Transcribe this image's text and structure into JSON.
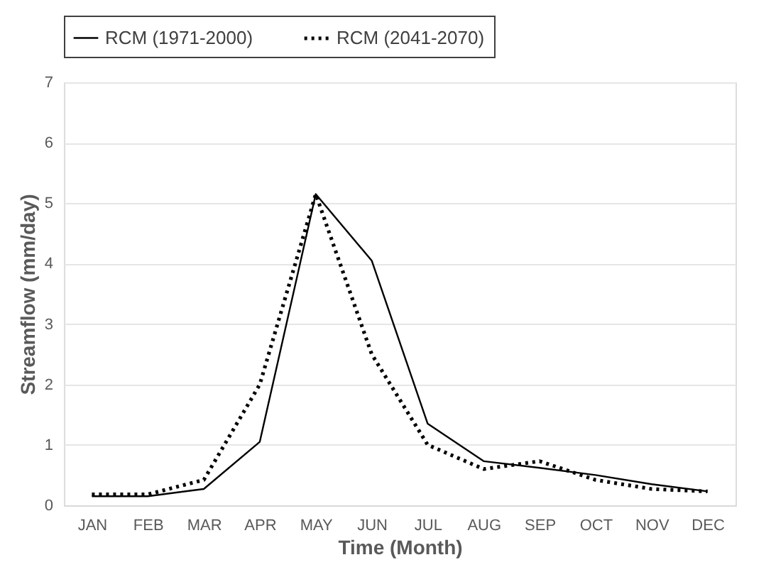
{
  "chart_data": {
    "type": "line",
    "xlabel": "Time (Month)",
    "ylabel": "Streamflow (mm/day)",
    "categories": [
      "JAN",
      "FEB",
      "MAR",
      "APR",
      "MAY",
      "JUN",
      "JUL",
      "AUG",
      "SEP",
      "OCT",
      "NOV",
      "DEC"
    ],
    "series": [
      {
        "name": "RCM (1971-2000)",
        "color": "#000000",
        "line_style": "solid",
        "values": [
          0.15,
          0.15,
          0.27,
          1.05,
          5.15,
          4.05,
          1.35,
          0.73,
          0.62,
          0.5,
          0.35,
          0.23
        ]
      },
      {
        "name": "RCM (2041-2070)",
        "color": "#000000",
        "line_style": "dotted",
        "values": [
          0.18,
          0.18,
          0.42,
          2.0,
          5.15,
          2.5,
          1.0,
          0.6,
          0.73,
          0.42,
          0.27,
          0.23
        ]
      }
    ],
    "ylim": [
      0,
      7
    ],
    "yticks": [
      0,
      1,
      2,
      3,
      4,
      5,
      6,
      7
    ],
    "grid": "y",
    "legend": "top",
    "marker": "none"
  }
}
